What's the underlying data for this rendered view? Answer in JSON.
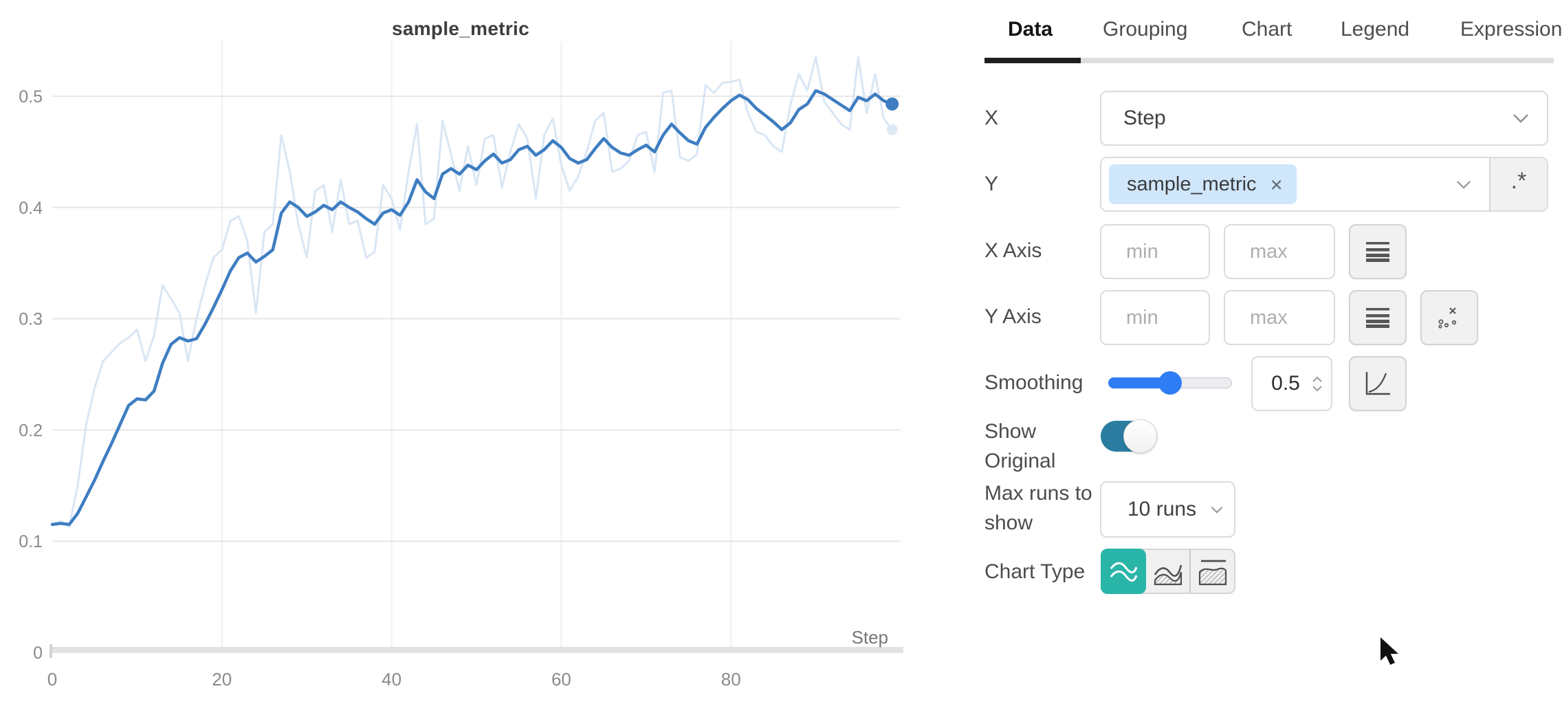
{
  "chart_data": {
    "type": "line",
    "title": "sample_metric",
    "xlabel": "Step",
    "ylabel": "",
    "xlim": [
      0,
      100
    ],
    "ylim": [
      0,
      0.55
    ],
    "x_ticks": [
      0,
      20,
      40,
      60,
      80
    ],
    "y_ticks": [
      0,
      0.1,
      0.2,
      0.3,
      0.4,
      0.5
    ],
    "grid": true,
    "legend": "none",
    "x_description": "step index 0-99, one point per step",
    "series": [
      {
        "name": "sample_metric (original)",
        "color": "#d9e6f4",
        "width": 3,
        "endpoint_dot": true,
        "values": [
          0.115,
          0.118,
          0.113,
          0.15,
          0.205,
          0.238,
          0.262,
          0.27,
          0.278,
          0.283,
          0.29,
          0.262,
          0.285,
          0.33,
          0.318,
          0.305,
          0.262,
          0.3,
          0.33,
          0.355,
          0.362,
          0.388,
          0.392,
          0.37,
          0.305,
          0.378,
          0.385,
          0.465,
          0.432,
          0.385,
          0.355,
          0.415,
          0.42,
          0.378,
          0.425,
          0.385,
          0.388,
          0.355,
          0.36,
          0.42,
          0.408,
          0.38,
          0.432,
          0.475,
          0.385,
          0.39,
          0.478,
          0.448,
          0.415,
          0.455,
          0.42,
          0.462,
          0.465,
          0.418,
          0.45,
          0.475,
          0.462,
          0.408,
          0.465,
          0.48,
          0.438,
          0.415,
          0.428,
          0.45,
          0.478,
          0.485,
          0.432,
          0.435,
          0.442,
          0.465,
          0.468,
          0.432,
          0.503,
          0.505,
          0.445,
          0.442,
          0.448,
          0.51,
          0.503,
          0.512,
          0.513,
          0.515,
          0.485,
          0.468,
          0.465,
          0.455,
          0.45,
          0.492,
          0.52,
          0.505,
          0.535,
          0.495,
          0.485,
          0.475,
          0.47,
          0.535,
          0.485,
          0.52,
          0.48,
          0.47
        ]
      },
      {
        "name": "sample_metric (smoothed 0.5)",
        "color": "#3e7dc1",
        "width": 4.5,
        "endpoint_dot": true,
        "values": [
          0.115,
          0.116,
          0.115,
          0.125,
          0.14,
          0.155,
          0.172,
          0.188,
          0.205,
          0.222,
          0.228,
          0.227,
          0.235,
          0.26,
          0.277,
          0.283,
          0.28,
          0.282,
          0.295,
          0.31,
          0.326,
          0.343,
          0.355,
          0.359,
          0.351,
          0.356,
          0.362,
          0.395,
          0.405,
          0.4,
          0.392,
          0.396,
          0.402,
          0.398,
          0.405,
          0.4,
          0.396,
          0.39,
          0.385,
          0.395,
          0.398,
          0.393,
          0.405,
          0.425,
          0.414,
          0.408,
          0.43,
          0.435,
          0.43,
          0.438,
          0.434,
          0.442,
          0.448,
          0.44,
          0.443,
          0.452,
          0.455,
          0.447,
          0.452,
          0.46,
          0.454,
          0.444,
          0.44,
          0.443,
          0.453,
          0.462,
          0.454,
          0.449,
          0.447,
          0.452,
          0.456,
          0.45,
          0.465,
          0.475,
          0.467,
          0.46,
          0.457,
          0.472,
          0.481,
          0.489,
          0.496,
          0.501,
          0.497,
          0.489,
          0.483,
          0.477,
          0.47,
          0.476,
          0.488,
          0.493,
          0.505,
          0.502,
          0.497,
          0.492,
          0.487,
          0.499,
          0.496,
          0.502,
          0.496,
          0.493
        ]
      }
    ]
  },
  "panel": {
    "tabs": [
      "Data",
      "Grouping",
      "Chart",
      "Legend",
      "Expressions"
    ],
    "active_tab": "Data",
    "rows": {
      "x": {
        "label": "X",
        "value": "Step"
      },
      "y": {
        "label": "Y",
        "tag": "sample_metric",
        "remove_icon": "×",
        "regex_label": ".*"
      },
      "x_axis": {
        "label": "X Axis",
        "min_placeholder": "min",
        "max_placeholder": "max"
      },
      "y_axis": {
        "label": "Y Axis",
        "min_placeholder": "min",
        "max_placeholder": "max"
      },
      "smoothing": {
        "label": "Smoothing",
        "value": "0.5",
        "slider_percent": 50
      },
      "show_original": {
        "label": "Show Original",
        "state": "on"
      },
      "max_runs": {
        "label": "Max runs to show",
        "value": "10 runs"
      },
      "chart_type": {
        "label": "Chart Type",
        "selected": "line"
      }
    }
  },
  "colors": {
    "smoothed_line": "#3e7dc1",
    "original_line": "#d9e6f4",
    "slider_accent": "#2f7df5",
    "toggle_on": "#2b7ca1",
    "chart_type_selected": "#2ab5a9",
    "tag_background": "#cfe6fb"
  }
}
